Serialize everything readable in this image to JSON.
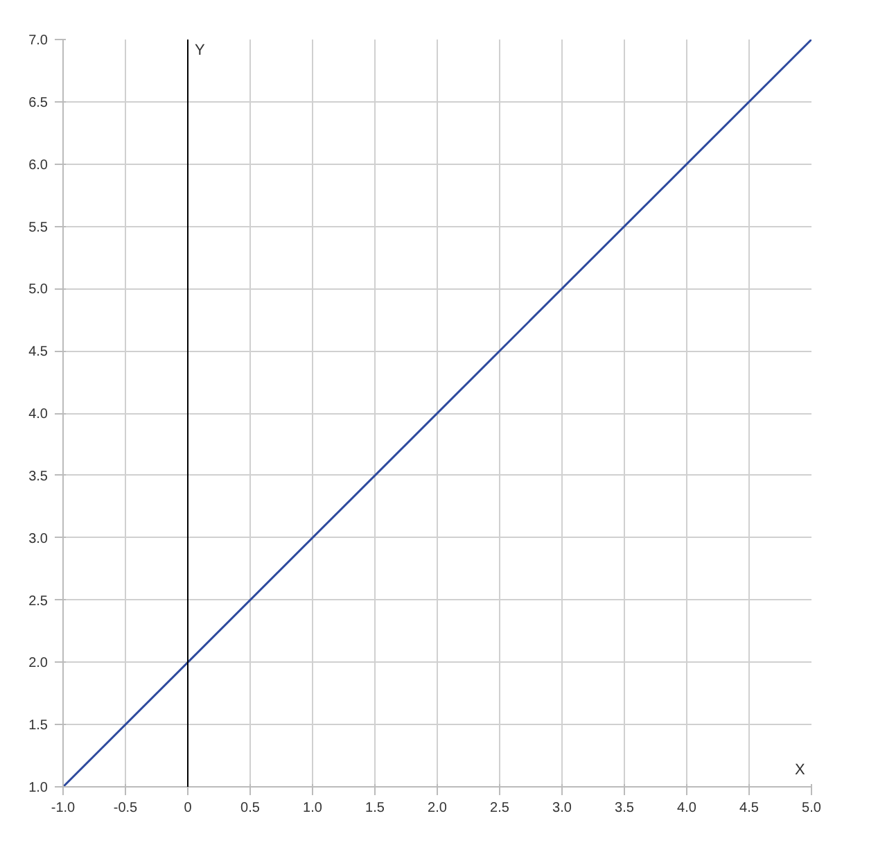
{
  "chart_data": {
    "type": "line",
    "xlabel": "X",
    "ylabel": "Y",
    "x": [
      -1,
      5
    ],
    "series": [
      {
        "color": "#2e4a9e",
        "values": [
          1,
          7
        ]
      }
    ],
    "xlim": [
      -1,
      5
    ],
    "ylim": [
      1,
      7
    ],
    "xticks": [
      {
        "value": -1,
        "label": "-1.0"
      },
      {
        "value": -0.5,
        "label": "-0.5"
      },
      {
        "value": 0,
        "label": "0"
      },
      {
        "value": 0.5,
        "label": "0.5"
      },
      {
        "value": 1,
        "label": "1.0"
      },
      {
        "value": 1.5,
        "label": "1.5"
      },
      {
        "value": 2,
        "label": "2.0"
      },
      {
        "value": 2.5,
        "label": "2.5"
      },
      {
        "value": 3,
        "label": "3.0"
      },
      {
        "value": 3.5,
        "label": "3.5"
      },
      {
        "value": 4,
        "label": "4.0"
      },
      {
        "value": 4.5,
        "label": "4.5"
      },
      {
        "value": 5,
        "label": "5.0"
      }
    ],
    "yticks": [
      {
        "value": 1,
        "label": "1.0"
      },
      {
        "value": 1.5,
        "label": "1.5"
      },
      {
        "value": 2,
        "label": "2.0"
      },
      {
        "value": 2.5,
        "label": "2.5"
      },
      {
        "value": 3,
        "label": "3.0"
      },
      {
        "value": 3.5,
        "label": "3.5"
      },
      {
        "value": 4,
        "label": "4.0"
      },
      {
        "value": 4.5,
        "label": "4.5"
      },
      {
        "value": 5,
        "label": "5.0"
      },
      {
        "value": 5.5,
        "label": "5.5"
      },
      {
        "value": 6,
        "label": "6.0"
      },
      {
        "value": 6.5,
        "label": "6.5"
      },
      {
        "value": 7,
        "label": "7.0"
      }
    ],
    "ref_lines": [
      {
        "axis": "x",
        "value": 0,
        "color": "#000000"
      }
    ],
    "grid": true,
    "marker": "none",
    "line_style": "solid"
  }
}
